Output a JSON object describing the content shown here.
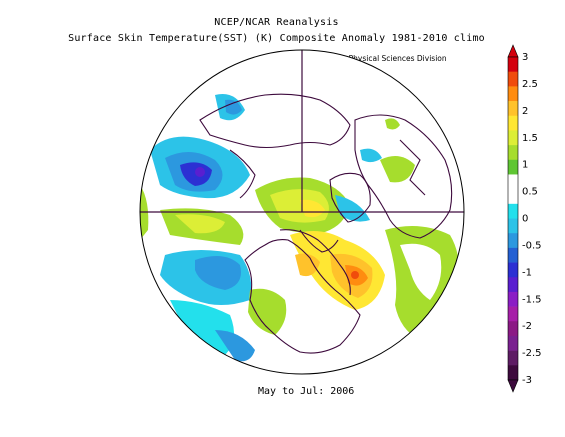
{
  "title_line1": "NCEP/NCAR Reanalysis",
  "title_line2": "Surface Skin Temperature(SST) (K) Composite Anomaly 1981-2010 climo",
  "credit": "NOAA/ESRL Physical Sciences Division",
  "period": "May to Jul: 2006",
  "projection": "north-polar-stereographic",
  "colorbar": {
    "labels": [
      "3",
      "2.5",
      "2",
      "1.5",
      "1",
      "0.5",
      "0",
      "-0.5",
      "-1",
      "-1.5",
      "-2",
      "-2.5",
      "-3"
    ],
    "colors": [
      "#d4000e",
      "#f04c0c",
      "#ff8c10",
      "#ffc22b",
      "#ffe733",
      "#dcee36",
      "#a6dd2d",
      "#5fc633",
      "#ffffff",
      "#ffffff",
      "#23e0ec",
      "#2cc3e8",
      "#2c98df",
      "#2460d3",
      "#2c30d3",
      "#5a1fd0",
      "#8b1ec5",
      "#a61fa8",
      "#8b1a85",
      "#7a2090",
      "#5e1c64",
      "#3d0a3d"
    ]
  }
}
